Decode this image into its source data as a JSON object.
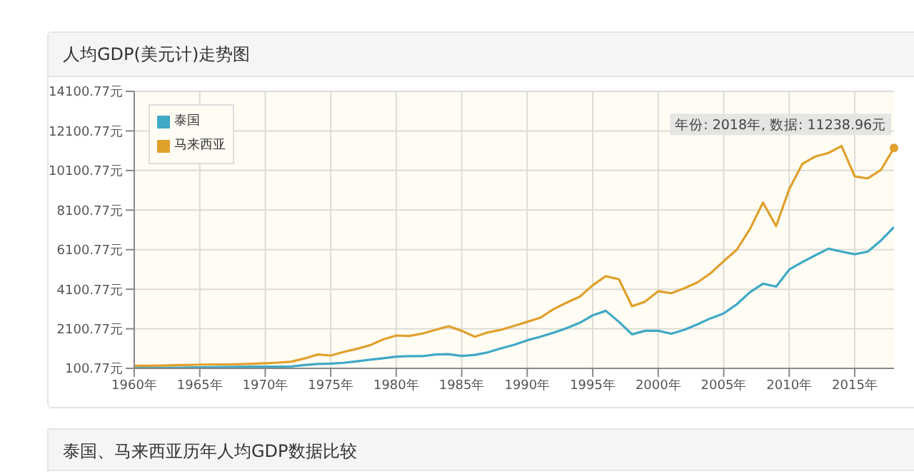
{
  "chart_data": {
    "type": "line",
    "title": "人均GDP(美元计)走势图",
    "x": [
      1960,
      1961,
      1962,
      1963,
      1964,
      1965,
      1966,
      1967,
      1968,
      1969,
      1970,
      1971,
      1972,
      1973,
      1974,
      1975,
      1976,
      1977,
      1978,
      1979,
      1980,
      1981,
      1982,
      1983,
      1984,
      1985,
      1986,
      1987,
      1988,
      1989,
      1990,
      1991,
      1992,
      1993,
      1994,
      1995,
      1996,
      1997,
      1998,
      1999,
      2000,
      2001,
      2002,
      2003,
      2004,
      2005,
      2006,
      2007,
      2008,
      2009,
      2010,
      2011,
      2012,
      2013,
      2014,
      2015,
      2016,
      2017,
      2018
    ],
    "series": [
      {
        "name": "泰国",
        "color": "#3fa9c6",
        "values": [
          110,
          120,
          120,
          130,
          140,
          150,
          160,
          170,
          180,
          190,
          190,
          190,
          200,
          270,
          320,
          340,
          380,
          460,
          540,
          610,
          690,
          720,
          720,
          800,
          820,
          730,
          780,
          910,
          1110,
          1290,
          1520,
          1700,
          1900,
          2130,
          2400,
          2780,
          3010,
          2450,
          1820,
          2000,
          2000,
          1850,
          2050,
          2330,
          2630,
          2880,
          3340,
          3950,
          4380,
          4230,
          5090,
          5470,
          5820,
          6150,
          6000,
          5870,
          6000,
          6560,
          7240
        ]
      },
      {
        "name": "马来西亚",
        "color": "#e0a02c",
        "values": [
          230,
          230,
          240,
          260,
          270,
          290,
          300,
          300,
          310,
          330,
          360,
          390,
          440,
          600,
          800,
          750,
          930,
          1090,
          1270,
          1560,
          1760,
          1740,
          1860,
          2050,
          2230,
          2000,
          1700,
          1920,
          2050,
          2250,
          2450,
          2660,
          3090,
          3420,
          3720,
          4300,
          4760,
          4600,
          3240,
          3470,
          4000,
          3900,
          4150,
          4450,
          4910,
          5520,
          6100,
          7140,
          8480,
          7290,
          9160,
          10430,
          10810,
          10990,
          11340,
          9800,
          9700,
          10130,
          11238.96
        ]
      }
    ],
    "xlim": [
      1960,
      2018
    ],
    "xticks": [
      {
        "value": 1960,
        "label": "1960年"
      },
      {
        "value": 1965,
        "label": "1965年"
      },
      {
        "value": 1970,
        "label": "1970年"
      },
      {
        "value": 1975,
        "label": "1975年"
      },
      {
        "value": 1980,
        "label": "1980年"
      },
      {
        "value": 1985,
        "label": "1985年"
      },
      {
        "value": 1990,
        "label": "1990年"
      },
      {
        "value": 1995,
        "label": "1995年"
      },
      {
        "value": 2000,
        "label": "2000年"
      },
      {
        "value": 2005,
        "label": "2005年"
      },
      {
        "value": 2010,
        "label": "2010年"
      },
      {
        "value": 2015,
        "label": "2015年"
      }
    ],
    "ylim": [
      100.77,
      14100.77
    ],
    "yticks": [
      {
        "value": 100.77,
        "label": "100.77元"
      },
      {
        "value": 2100.77,
        "label": "2100.77元"
      },
      {
        "value": 4100.77,
        "label": "4100.77元"
      },
      {
        "value": 6100.77,
        "label": "6100.77元"
      },
      {
        "value": 8100.77,
        "label": "8100.77元"
      },
      {
        "value": 10100.77,
        "label": "10100.77元"
      },
      {
        "value": 12100.77,
        "label": "12100.77元"
      },
      {
        "value": 14100.77,
        "label": "14100.77元"
      }
    ],
    "grid": true,
    "legend": "top left",
    "marker": "none",
    "line_style": "solid",
    "annotations": [
      {
        "text": "年份: 2018年, 数据: 11238.96元",
        "x": 2018,
        "y": 11238.96
      },
      "泰国、马来西亚历年人均GDP数据比较"
    ]
  }
}
